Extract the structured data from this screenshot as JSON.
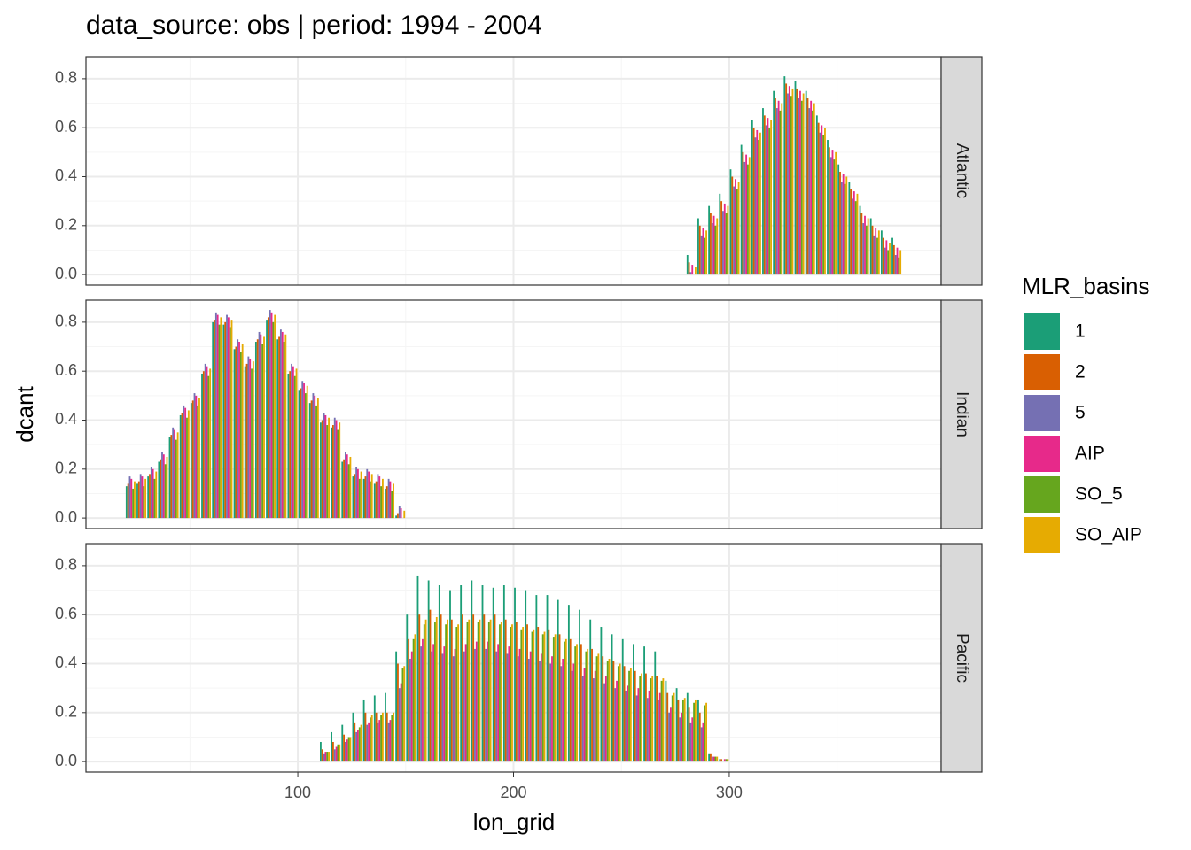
{
  "chart_data": {
    "type": "bar",
    "title": "data_source: obs | period: 1994 - 2004",
    "x_label": "lon_grid",
    "y_label": "dcant",
    "xlim": [
      1.8,
      398.2
    ],
    "xticks": [
      100,
      200,
      300
    ],
    "ylim": [
      -0.043,
      0.89
    ],
    "yticks": [
      {
        "value": 0,
        "label": "0.0"
      },
      0.2,
      0.4,
      0.6,
      0.8
    ],
    "grid": true,
    "legend_position": "right",
    "legend_title": "MLR_basins",
    "legend": [
      {
        "name": "1",
        "color": "#1b9e77"
      },
      {
        "name": "2",
        "color": "#d95f02"
      },
      {
        "name": "5",
        "color": "#7570b3"
      },
      {
        "name": "AIP",
        "color": "#e7298a"
      },
      {
        "name": "SO_5",
        "color": "#66a61e"
      },
      {
        "name": "SO_AIP",
        "color": "#e6ab02"
      }
    ],
    "panels": [
      {
        "label": "Atlantic",
        "x": [
          282.5,
          287.5,
          292.5,
          297.5,
          302.5,
          307.5,
          312.5,
          317.5,
          322.5,
          327.5,
          332.5,
          337.5,
          342.5,
          347.5,
          352.5,
          357.5,
          362.5,
          367.5,
          372.5,
          377.5
        ],
        "values": [
          [
            0.08,
            0.23,
            0.28,
            0.33,
            0.43,
            0.53,
            0.63,
            0.68,
            0.75,
            0.81,
            0.79,
            0.75,
            0.65,
            0.55,
            0.45,
            0.38,
            0.28,
            0.23,
            0.18,
            0.15
          ],
          [
            0.05,
            0.2,
            0.25,
            0.3,
            0.4,
            0.5,
            0.6,
            0.65,
            0.72,
            0.78,
            0.76,
            0.72,
            0.62,
            0.52,
            0.42,
            0.35,
            0.25,
            0.2,
            0.15,
            0.12
          ],
          [
            0.01,
            0.16,
            0.21,
            0.26,
            0.36,
            0.46,
            0.56,
            0.61,
            0.68,
            0.74,
            0.72,
            0.68,
            0.58,
            0.48,
            0.38,
            0.31,
            0.21,
            0.16,
            0.11,
            0.08
          ],
          [
            0.04,
            0.19,
            0.24,
            0.29,
            0.39,
            0.49,
            0.59,
            0.64,
            0.71,
            0.77,
            0.75,
            0.71,
            0.61,
            0.51,
            0.41,
            0.34,
            0.24,
            0.19,
            0.14,
            0.11
          ],
          [
            0.0,
            0.15,
            0.2,
            0.25,
            0.35,
            0.45,
            0.55,
            0.6,
            0.67,
            0.73,
            0.71,
            0.67,
            0.57,
            0.47,
            0.37,
            0.3,
            0.2,
            0.15,
            0.1,
            0.07
          ],
          [
            0.03,
            0.18,
            0.23,
            0.28,
            0.38,
            0.48,
            0.58,
            0.63,
            0.7,
            0.76,
            0.74,
            0.7,
            0.6,
            0.5,
            0.4,
            0.33,
            0.23,
            0.18,
            0.13,
            0.1
          ]
        ]
      },
      {
        "label": "Indian",
        "x": [
          22.5,
          27.5,
          32.5,
          37.5,
          42.5,
          47.5,
          52.5,
          57.5,
          62.5,
          67.5,
          72.5,
          77.5,
          82.5,
          87.5,
          92.5,
          97.5,
          102.5,
          107.5,
          112.5,
          117.5,
          122.5,
          127.5,
          132.5,
          137.5,
          142.5,
          147.5
        ],
        "values": [
          [
            0.13,
            0.14,
            0.17,
            0.23,
            0.33,
            0.42,
            0.47,
            0.59,
            0.8,
            0.79,
            0.69,
            0.62,
            0.72,
            0.81,
            0.73,
            0.59,
            0.52,
            0.47,
            0.39,
            0.37,
            0.23,
            0.17,
            0.16,
            0.14,
            0.12,
            0.01
          ],
          [
            0.14,
            0.15,
            0.18,
            0.24,
            0.34,
            0.43,
            0.48,
            0.6,
            0.81,
            0.8,
            0.7,
            0.63,
            0.73,
            0.82,
            0.74,
            0.6,
            0.53,
            0.48,
            0.4,
            0.38,
            0.24,
            0.18,
            0.17,
            0.15,
            0.13,
            0.02
          ],
          [
            0.17,
            0.18,
            0.21,
            0.27,
            0.37,
            0.46,
            0.51,
            0.63,
            0.84,
            0.83,
            0.73,
            0.66,
            0.76,
            0.85,
            0.77,
            0.63,
            0.56,
            0.51,
            0.43,
            0.41,
            0.27,
            0.21,
            0.2,
            0.18,
            0.16,
            0.05
          ],
          [
            0.16,
            0.17,
            0.2,
            0.26,
            0.36,
            0.45,
            0.5,
            0.62,
            0.83,
            0.82,
            0.72,
            0.65,
            0.75,
            0.84,
            0.76,
            0.62,
            0.55,
            0.5,
            0.42,
            0.4,
            0.26,
            0.2,
            0.19,
            0.17,
            0.15,
            0.04
          ],
          [
            0.12,
            0.13,
            0.16,
            0.22,
            0.32,
            0.41,
            0.46,
            0.58,
            0.79,
            0.78,
            0.68,
            0.61,
            0.71,
            0.8,
            0.72,
            0.58,
            0.51,
            0.46,
            0.38,
            0.36,
            0.22,
            0.16,
            0.15,
            0.13,
            0.11,
            0.0
          ],
          [
            0.15,
            0.16,
            0.19,
            0.25,
            0.35,
            0.44,
            0.49,
            0.61,
            0.82,
            0.81,
            0.71,
            0.64,
            0.74,
            0.83,
            0.75,
            0.61,
            0.54,
            0.49,
            0.41,
            0.39,
            0.25,
            0.19,
            0.18,
            0.16,
            0.14,
            0.03
          ]
        ]
      },
      {
        "label": "Pacific",
        "x": [
          112.5,
          117.5,
          122.5,
          127.5,
          132.5,
          137.5,
          142.5,
          147.5,
          152.5,
          157.5,
          162.5,
          167.5,
          172.5,
          177.5,
          182.5,
          187.5,
          192.5,
          197.5,
          202.5,
          207.5,
          212.5,
          217.5,
          222.5,
          227.5,
          232.5,
          237.5,
          242.5,
          247.5,
          252.5,
          257.5,
          262.5,
          267.5,
          272.5,
          277.5,
          282.5,
          287.5,
          292.5,
          297.5
        ],
        "values": [
          [
            0.08,
            0.12,
            0.15,
            0.2,
            0.25,
            0.27,
            0.28,
            0.45,
            0.6,
            0.76,
            0.74,
            0.72,
            0.7,
            0.72,
            0.74,
            0.72,
            0.71,
            0.72,
            0.71,
            0.7,
            0.68,
            0.68,
            0.66,
            0.64,
            0.62,
            0.58,
            0.55,
            0.52,
            0.5,
            0.48,
            0.47,
            0.45,
            0.33,
            0.3,
            0.28,
            0.25,
            0.03,
            0.01
          ],
          [
            0.05,
            0.08,
            0.11,
            0.16,
            0.2,
            0.2,
            0.2,
            0.4,
            0.5,
            0.6,
            0.62,
            0.6,
            0.58,
            0.6,
            0.6,
            0.6,
            0.6,
            0.58,
            0.57,
            0.56,
            0.55,
            0.54,
            0.52,
            0.5,
            0.48,
            0.46,
            0.43,
            0.41,
            0.39,
            0.37,
            0.36,
            0.35,
            0.28,
            0.25,
            0.22,
            0.2,
            0.03,
            0.01
          ],
          [
            0.03,
            0.05,
            0.08,
            0.12,
            0.15,
            0.16,
            0.16,
            0.3,
            0.42,
            0.47,
            0.45,
            0.44,
            0.43,
            0.45,
            0.46,
            0.46,
            0.45,
            0.44,
            0.43,
            0.42,
            0.41,
            0.4,
            0.39,
            0.37,
            0.35,
            0.34,
            0.32,
            0.3,
            0.29,
            0.27,
            0.26,
            0.25,
            0.2,
            0.18,
            0.16,
            0.14,
            0.02,
            0.0
          ],
          [
            0.04,
            0.06,
            0.09,
            0.13,
            0.16,
            0.17,
            0.17,
            0.32,
            0.45,
            0.5,
            0.48,
            0.47,
            0.46,
            0.48,
            0.49,
            0.49,
            0.48,
            0.47,
            0.46,
            0.45,
            0.44,
            0.43,
            0.42,
            0.4,
            0.38,
            0.37,
            0.35,
            0.33,
            0.31,
            0.3,
            0.29,
            0.28,
            0.22,
            0.2,
            0.18,
            0.16,
            0.02,
            0.01
          ],
          [
            0.04,
            0.07,
            0.1,
            0.14,
            0.18,
            0.19,
            0.19,
            0.38,
            0.5,
            0.56,
            0.57,
            0.56,
            0.55,
            0.57,
            0.57,
            0.57,
            0.56,
            0.55,
            0.54,
            0.53,
            0.52,
            0.51,
            0.49,
            0.47,
            0.45,
            0.43,
            0.41,
            0.39,
            0.37,
            0.35,
            0.34,
            0.33,
            0.27,
            0.25,
            0.24,
            0.23,
            0.02,
            0.01
          ],
          [
            0.04,
            0.07,
            0.1,
            0.15,
            0.19,
            0.2,
            0.2,
            0.39,
            0.52,
            0.58,
            0.59,
            0.58,
            0.56,
            0.58,
            0.58,
            0.58,
            0.57,
            0.56,
            0.55,
            0.54,
            0.53,
            0.52,
            0.5,
            0.48,
            0.46,
            0.44,
            0.42,
            0.4,
            0.38,
            0.36,
            0.35,
            0.34,
            0.28,
            0.26,
            0.25,
            0.24,
            0.02,
            0.01
          ]
        ]
      }
    ]
  }
}
